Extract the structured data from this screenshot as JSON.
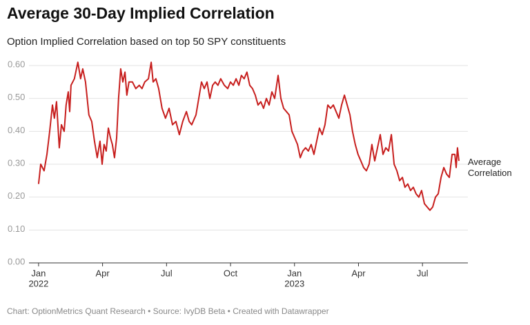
{
  "chart_data": {
    "type": "line",
    "title": "Average 30-Day Implied Correlation",
    "subtitle": "Option Implied Correlation based on top 50 SPY constituents",
    "source": "Chart: OptionMetrics Quant Research • Source: IvyDB Beta • Created with Datawrapper",
    "x": [
      0,
      0.1,
      0.26,
      0.39,
      0.52,
      0.65,
      0.74,
      0.84,
      0.97,
      1.07,
      1.2,
      1.29,
      1.39,
      1.46,
      1.52,
      1.68,
      1.84,
      1.97,
      2.07,
      2.2,
      2.36,
      2.49,
      2.62,
      2.75,
      2.88,
      2.98,
      3.07,
      3.17,
      3.27,
      3.37,
      3.46,
      3.56,
      3.66,
      3.75,
      3.85,
      3.95,
      4.05,
      4.14,
      4.24,
      4.4,
      4.56,
      4.72,
      4.85,
      4.98,
      5.15,
      5.28,
      5.37,
      5.5,
      5.63,
      5.79,
      5.95,
      6.12,
      6.28,
      6.44,
      6.6,
      6.76,
      6.93,
      7.06,
      7.18,
      7.38,
      7.51,
      7.64,
      7.77,
      7.9,
      8.03,
      8.16,
      8.28,
      8.41,
      8.54,
      8.71,
      8.87,
      9.0,
      9.13,
      9.26,
      9.39,
      9.51,
      9.64,
      9.77,
      9.9,
      10.03,
      10.16,
      10.29,
      10.42,
      10.55,
      10.68,
      10.81,
      10.94,
      11.07,
      11.23,
      11.36,
      11.49,
      11.62,
      11.75,
      11.88,
      12.01,
      12.14,
      12.27,
      12.39,
      12.52,
      12.65,
      12.78,
      12.91,
      13.04,
      13.17,
      13.3,
      13.43,
      13.56,
      13.69,
      13.82,
      13.95,
      14.08,
      14.21,
      14.34,
      14.47,
      14.6,
      14.72,
      14.85,
      14.98,
      15.11,
      15.24,
      15.37,
      15.5,
      15.63,
      15.76,
      15.89,
      16.02,
      16.15,
      16.28,
      16.41,
      16.54,
      16.67,
      16.8,
      16.93,
      17.06,
      17.18,
      17.31,
      17.44,
      17.57,
      17.7,
      17.83,
      17.96,
      18.09,
      18.22,
      18.35,
      18.48,
      18.61,
      18.74,
      18.87,
      19.0,
      19.13,
      19.26,
      19.39,
      19.52,
      19.58,
      19.64,
      19.71
    ],
    "series": [
      {
        "name": "Average Correlation",
        "color": "#c71e1d",
        "values": [
          0.24,
          0.3,
          0.28,
          0.33,
          0.4,
          0.48,
          0.44,
          0.49,
          0.35,
          0.42,
          0.4,
          0.48,
          0.52,
          0.46,
          0.54,
          0.56,
          0.61,
          0.56,
          0.59,
          0.55,
          0.45,
          0.43,
          0.37,
          0.32,
          0.37,
          0.3,
          0.36,
          0.34,
          0.41,
          0.38,
          0.36,
          0.32,
          0.38,
          0.5,
          0.59,
          0.55,
          0.58,
          0.51,
          0.55,
          0.55,
          0.53,
          0.54,
          0.53,
          0.55,
          0.56,
          0.61,
          0.55,
          0.56,
          0.53,
          0.47,
          0.44,
          0.47,
          0.42,
          0.43,
          0.39,
          0.43,
          0.46,
          0.43,
          0.42,
          0.45,
          0.5,
          0.55,
          0.53,
          0.55,
          0.5,
          0.54,
          0.55,
          0.54,
          0.56,
          0.54,
          0.53,
          0.55,
          0.54,
          0.56,
          0.54,
          0.57,
          0.56,
          0.58,
          0.54,
          0.53,
          0.51,
          0.48,
          0.49,
          0.47,
          0.5,
          0.48,
          0.52,
          0.5,
          0.57,
          0.5,
          0.47,
          0.46,
          0.45,
          0.4,
          0.38,
          0.36,
          0.32,
          0.34,
          0.35,
          0.34,
          0.36,
          0.33,
          0.37,
          0.41,
          0.39,
          0.42,
          0.48,
          0.47,
          0.48,
          0.46,
          0.44,
          0.48,
          0.51,
          0.48,
          0.45,
          0.4,
          0.36,
          0.33,
          0.31,
          0.29,
          0.28,
          0.3,
          0.36,
          0.31,
          0.35,
          0.39,
          0.33,
          0.35,
          0.34,
          0.39,
          0.3,
          0.28,
          0.25,
          0.26,
          0.23,
          0.24,
          0.22,
          0.23,
          0.21,
          0.2,
          0.22,
          0.18,
          0.17,
          0.16,
          0.17,
          0.2,
          0.21,
          0.26,
          0.29,
          0.27,
          0.26,
          0.33,
          0.33,
          0.29,
          0.35,
          0.31
        ]
      }
    ],
    "xlim": [
      -0.45,
      20.13
    ],
    "xticks": [
      {
        "value": 0,
        "label": "Jan"
      },
      {
        "value": 3,
        "label": "Apr"
      },
      {
        "value": 6,
        "label": "Jul"
      },
      {
        "value": 9,
        "label": "Oct"
      },
      {
        "value": 12,
        "label": "Jan"
      },
      {
        "value": 15,
        "label": "Apr"
      },
      {
        "value": 18,
        "label": "Jul"
      }
    ],
    "year_labels": [
      {
        "value": 0,
        "label": "2022"
      },
      {
        "value": 12,
        "label": "2023"
      }
    ],
    "ylim": [
      0,
      0.6
    ],
    "yticks": [
      {
        "value": 0,
        "label": "0.00"
      },
      {
        "value": 0.1,
        "label": "0.10"
      },
      {
        "value": 0.2,
        "label": "0.20"
      },
      {
        "value": 0.3,
        "label": "0.30"
      },
      {
        "value": 0.4,
        "label": "0.40"
      },
      {
        "value": 0.5,
        "label": "0.50"
      },
      {
        "value": 0.6,
        "label": "0.60"
      }
    ],
    "grid": true
  }
}
